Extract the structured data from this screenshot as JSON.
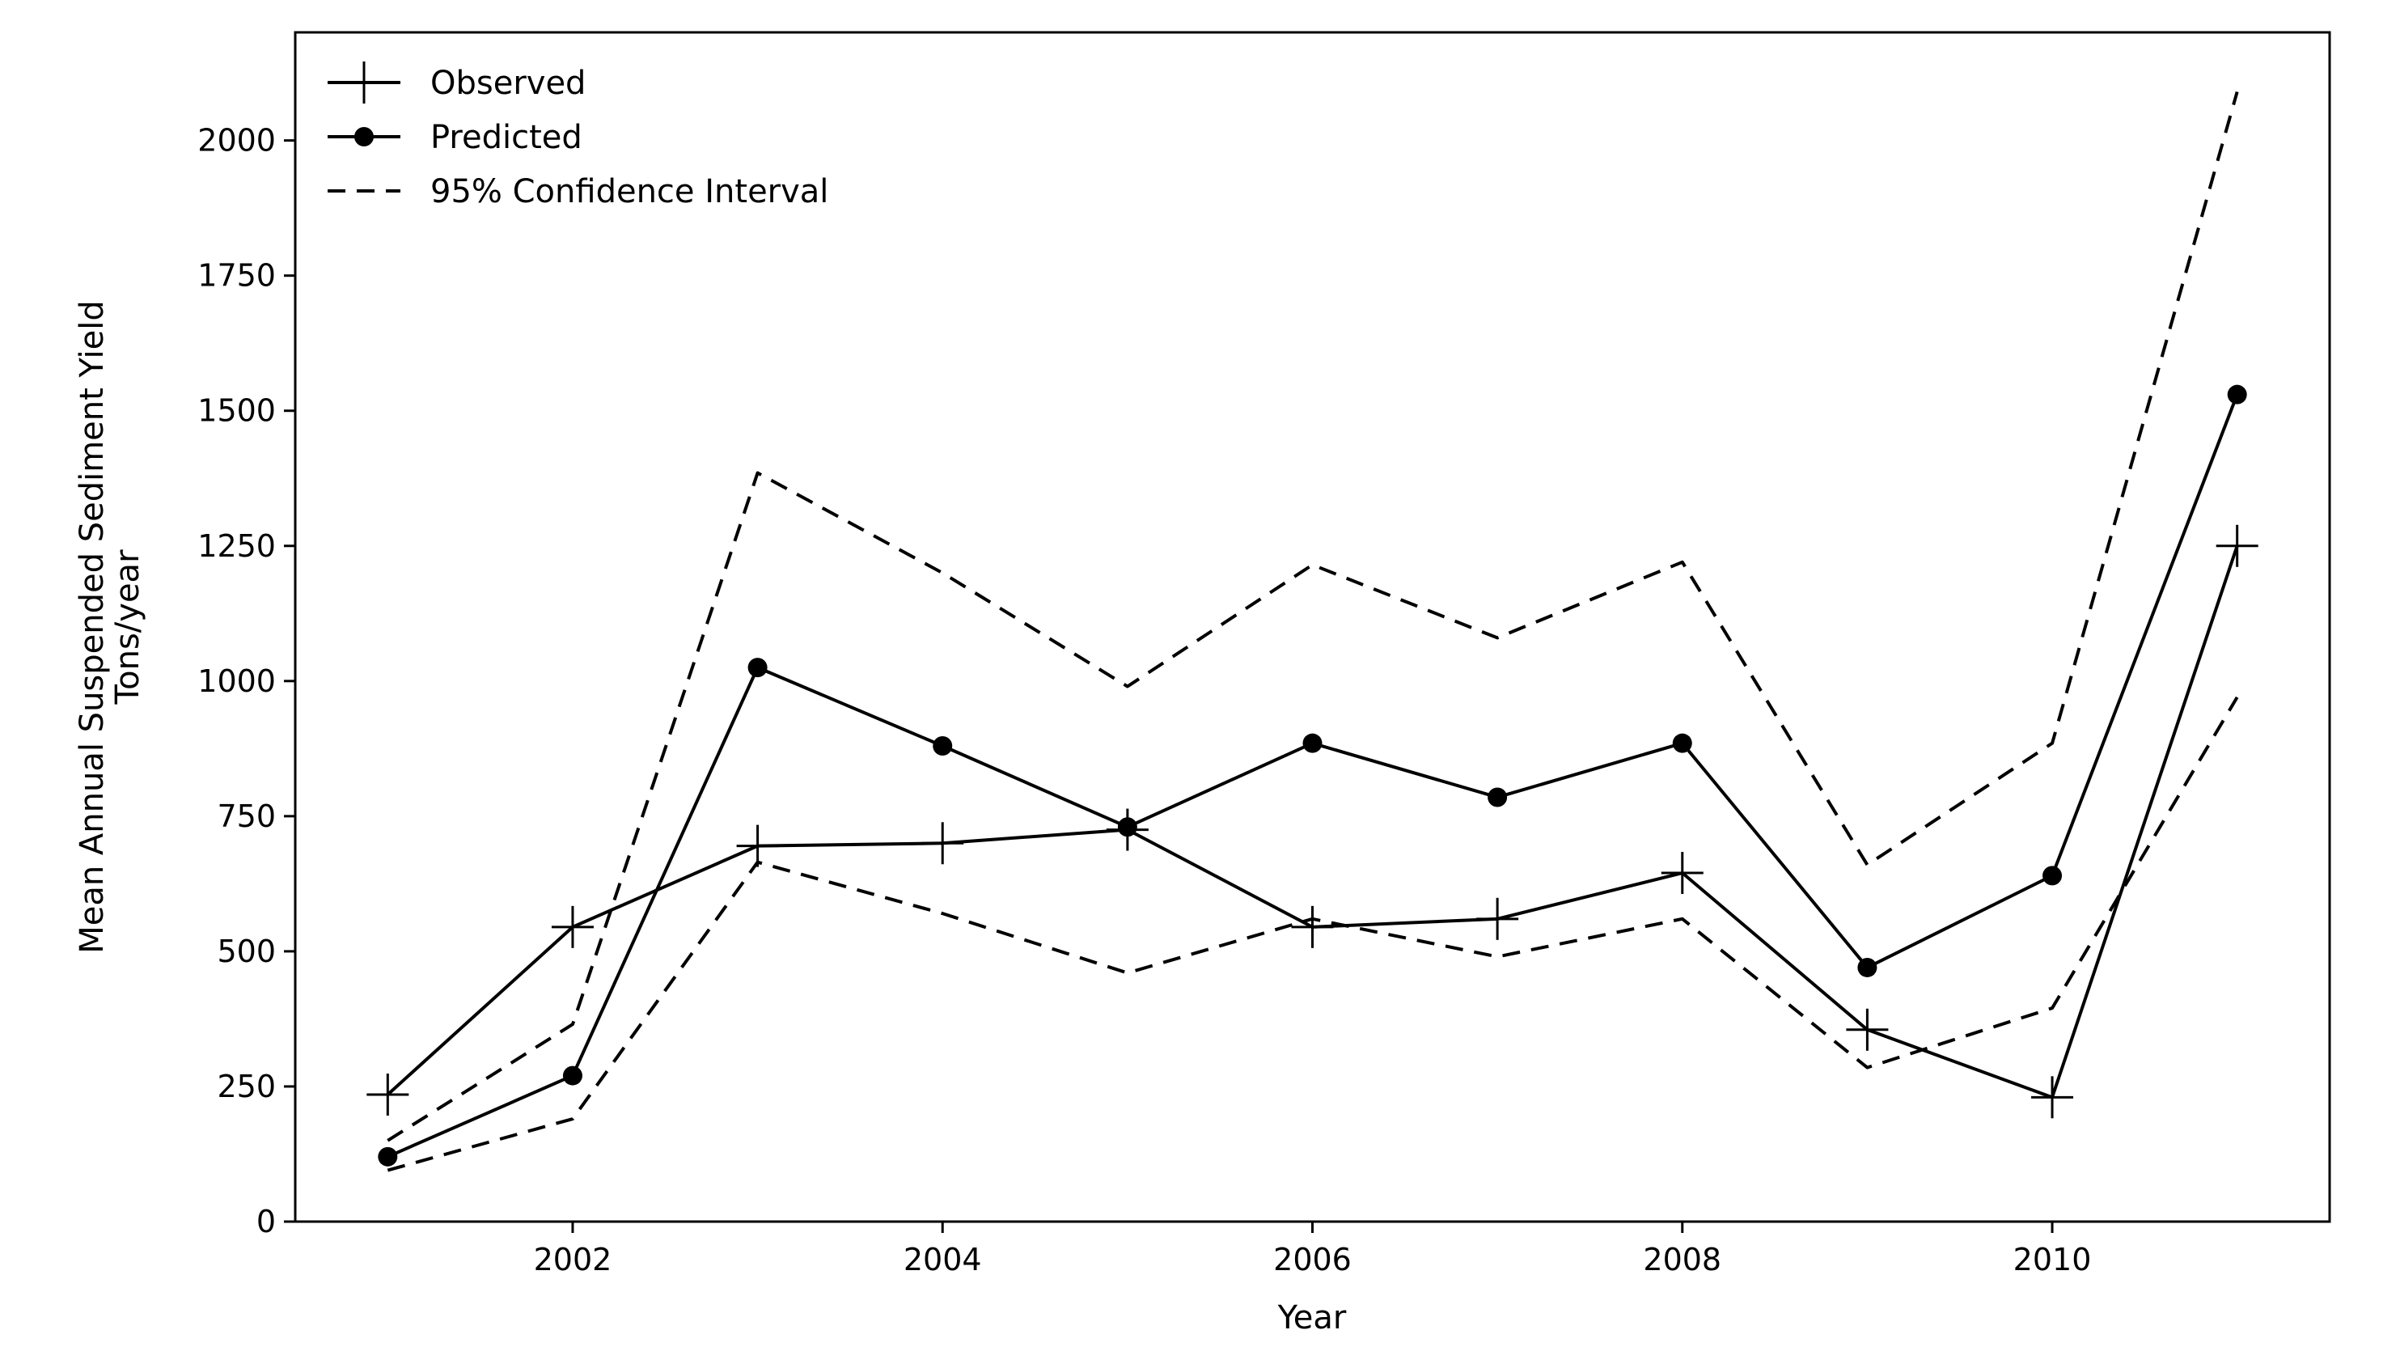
{
  "chart_data": {
    "type": "line",
    "xlabel": "Year",
    "ylabel": [
      "Mean Annual Suspended Sediment Yield",
      "Tons/year"
    ],
    "xlim": [
      2000.5,
      2011.5
    ],
    "ylim": [
      0,
      2200
    ],
    "x_ticks": [
      2002,
      2004,
      2006,
      2008,
      2010
    ],
    "y_ticks": [
      0,
      250,
      500,
      750,
      1000,
      1250,
      1500,
      1750,
      2000
    ],
    "grid": false,
    "legend_position": "top-left",
    "x": [
      2001,
      2002,
      2003,
      2004,
      2005,
      2006,
      2007,
      2008,
      2009,
      2010,
      2011
    ],
    "series": [
      {
        "name": "Observed",
        "style": "solid",
        "marker": "plus",
        "color": "#000000",
        "values": [
          235,
          545,
          695,
          700,
          725,
          545,
          560,
          645,
          355,
          230,
          1250
        ]
      },
      {
        "name": "Predicted",
        "style": "solid",
        "marker": "circle",
        "color": "#000000",
        "values": [
          120,
          270,
          1025,
          880,
          730,
          885,
          785,
          885,
          470,
          640,
          1530
        ]
      },
      {
        "name": "95% Confidence Interval",
        "style": "dashed",
        "marker": "none",
        "color": "#000000",
        "values": [
          150,
          365,
          1385,
          1200,
          990,
          1215,
          1080,
          1220,
          660,
          885,
          2090
        ]
      },
      {
        "name": "",
        "legend": false,
        "style": "dashed",
        "marker": "none",
        "color": "#000000",
        "values": [
          95,
          190,
          665,
          570,
          460,
          560,
          490,
          560,
          285,
          395,
          970
        ]
      }
    ]
  }
}
